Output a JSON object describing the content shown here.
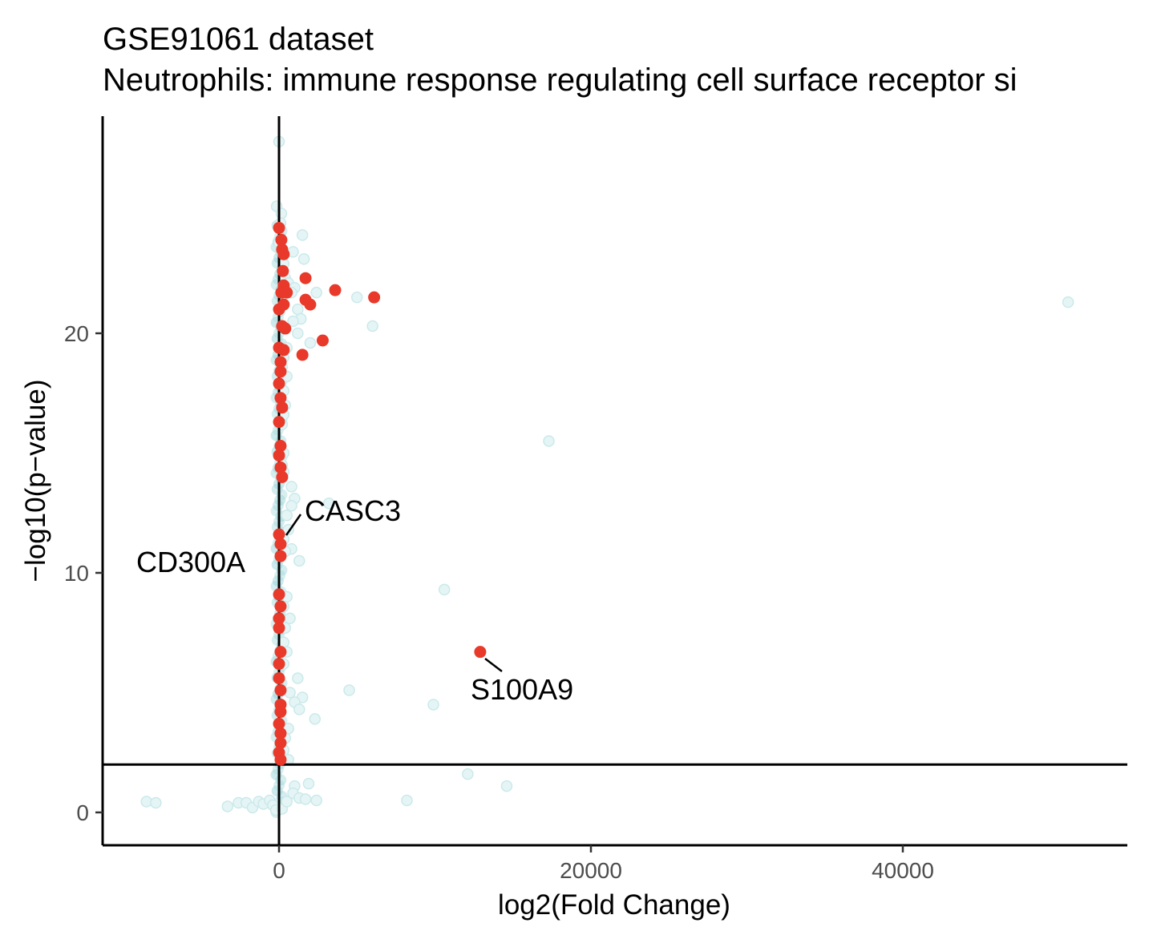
{
  "chart_data": {
    "type": "scatter",
    "title": "GSE91061 dataset",
    "subtitle": "Neutrophils: immune response regulating cell surface receptor si",
    "xlabel": "log2(Fold Change)",
    "ylabel": "−log10(p−value)",
    "xlim": [
      -11500,
      54000
    ],
    "ylim": [
      -1.3,
      29
    ],
    "xticks": [
      0,
      20000,
      40000
    ],
    "xtick_labels": [
      "0",
      "20000",
      "40000"
    ],
    "yticks": [
      0,
      10,
      20
    ],
    "ytick_labels": [
      "0",
      "10",
      "20"
    ],
    "grid": false,
    "legend": "none",
    "reference_lines": {
      "vertical_x": 0,
      "horizontal_y": 2
    },
    "colors": {
      "background": "#e5f5f6",
      "highlight": "#e8392a",
      "axis": "#000000"
    },
    "series": [
      {
        "role": "background",
        "points": [
          [
            0,
            28
          ],
          [
            -150,
            25.3
          ],
          [
            150,
            25.0
          ],
          [
            100,
            24.6
          ],
          [
            1500,
            24.1
          ],
          [
            0,
            23.8
          ],
          [
            200,
            23.5
          ],
          [
            900,
            23.4
          ],
          [
            1600,
            23.1
          ],
          [
            300,
            22.9
          ],
          [
            400,
            22.3
          ],
          [
            600,
            22.1
          ],
          [
            1000,
            21.9
          ],
          [
            800,
            21.7
          ],
          [
            2400,
            21.7
          ],
          [
            5000,
            21.5
          ],
          [
            100,
            21.2
          ],
          [
            1200,
            21.0
          ],
          [
            1400,
            20.6
          ],
          [
            900,
            20.5
          ],
          [
            6000,
            20.3
          ],
          [
            1200,
            20.0
          ],
          [
            2000,
            19.6
          ],
          [
            500,
            19.4
          ],
          [
            300,
            19.0
          ],
          [
            200,
            18.6
          ],
          [
            500,
            18.2
          ],
          [
            300,
            17.6
          ],
          [
            400,
            17.0
          ],
          [
            300,
            16.6
          ],
          [
            200,
            16.2
          ],
          [
            17300,
            15.5
          ],
          [
            300,
            15.0
          ],
          [
            200,
            14.5
          ],
          [
            300,
            14.2
          ],
          [
            800,
            13.6
          ],
          [
            1000,
            13.1
          ],
          [
            800,
            12.8
          ],
          [
            3200,
            12.9
          ],
          [
            500,
            12.4
          ],
          [
            600,
            11.8
          ],
          [
            300,
            11.4
          ],
          [
            800,
            11.0
          ],
          [
            400,
            10.9
          ],
          [
            1300,
            10.5
          ],
          [
            10600,
            9.3
          ],
          [
            500,
            9.0
          ],
          [
            300,
            8.6
          ],
          [
            700,
            8.1
          ],
          [
            400,
            7.7
          ],
          [
            300,
            7.1
          ],
          [
            500,
            6.7
          ],
          [
            300,
            6.2
          ],
          [
            1200,
            5.6
          ],
          [
            4500,
            5.1
          ],
          [
            700,
            5.0
          ],
          [
            1500,
            4.8
          ],
          [
            1000,
            4.6
          ],
          [
            9900,
            4.5
          ],
          [
            1300,
            4.3
          ],
          [
            2300,
            3.9
          ],
          [
            600,
            3.5
          ],
          [
            400,
            3.1
          ],
          [
            300,
            2.6
          ],
          [
            600,
            2.2
          ],
          [
            12100,
            1.6
          ],
          [
            14600,
            1.1
          ],
          [
            1900,
            1.2
          ],
          [
            1000,
            1.1
          ],
          [
            -8500,
            0.45
          ],
          [
            -7900,
            0.4
          ],
          [
            -3300,
            0.25
          ],
          [
            -2600,
            0.4
          ],
          [
            -2100,
            0.4
          ],
          [
            -1700,
            0.2
          ],
          [
            -1300,
            0.45
          ],
          [
            -1000,
            0.35
          ],
          [
            -600,
            0.5
          ],
          [
            -400,
            0.3
          ],
          [
            -200,
            0.1
          ],
          [
            200,
            0.15
          ],
          [
            500,
            0.45
          ],
          [
            900,
            0.8
          ],
          [
            1300,
            0.6
          ],
          [
            1700,
            0.55
          ],
          [
            2400,
            0.5
          ],
          [
            8200,
            0.5
          ],
          [
            50600,
            21.3
          ]
        ]
      },
      {
        "role": "highlighted",
        "points": [
          [
            0,
            24.4
          ],
          [
            150,
            23.9
          ],
          [
            200,
            23.5
          ],
          [
            300,
            23.3
          ],
          [
            250,
            22.6
          ],
          [
            1700,
            22.3
          ],
          [
            300,
            22.0
          ],
          [
            3600,
            21.8
          ],
          [
            150,
            21.7
          ],
          [
            500,
            21.7
          ],
          [
            6100,
            21.5
          ],
          [
            1700,
            21.4
          ],
          [
            2000,
            21.2
          ],
          [
            300,
            21.2
          ],
          [
            0,
            21.0
          ],
          [
            200,
            20.3
          ],
          [
            400,
            20.2
          ],
          [
            2800,
            19.7
          ],
          [
            0,
            19.4
          ],
          [
            300,
            19.3
          ],
          [
            1500,
            19.1
          ],
          [
            100,
            18.8
          ],
          [
            100,
            18.4
          ],
          [
            0,
            17.9
          ],
          [
            100,
            17.3
          ],
          [
            200,
            16.9
          ],
          [
            0,
            16.3
          ],
          [
            100,
            15.3
          ],
          [
            0,
            14.9
          ],
          [
            100,
            14.4
          ],
          [
            200,
            14.0
          ],
          [
            0,
            11.6
          ],
          [
            100,
            11.2
          ],
          [
            100,
            10.7
          ],
          [
            0,
            9.1
          ],
          [
            100,
            8.6
          ],
          [
            0,
            8.1
          ],
          [
            0,
            7.7
          ],
          [
            100,
            6.7
          ],
          [
            0,
            6.2
          ],
          [
            0,
            5.6
          ],
          [
            100,
            5.1
          ],
          [
            100,
            4.5
          ],
          [
            100,
            4.2
          ],
          [
            0,
            3.7
          ],
          [
            100,
            3.3
          ],
          [
            100,
            2.9
          ],
          [
            0,
            2.5
          ],
          [
            100,
            2.2
          ],
          [
            12900,
            6.7
          ]
        ]
      }
    ],
    "annotations": [
      {
        "label": "CASC3",
        "x": 200,
        "y": 11.6,
        "leader": true
      },
      {
        "label": "CD300A",
        "x": 0,
        "y": 10.4,
        "leader": false
      },
      {
        "label": "S100A9",
        "x": 12900,
        "y": 6.7,
        "leader": true
      }
    ]
  }
}
